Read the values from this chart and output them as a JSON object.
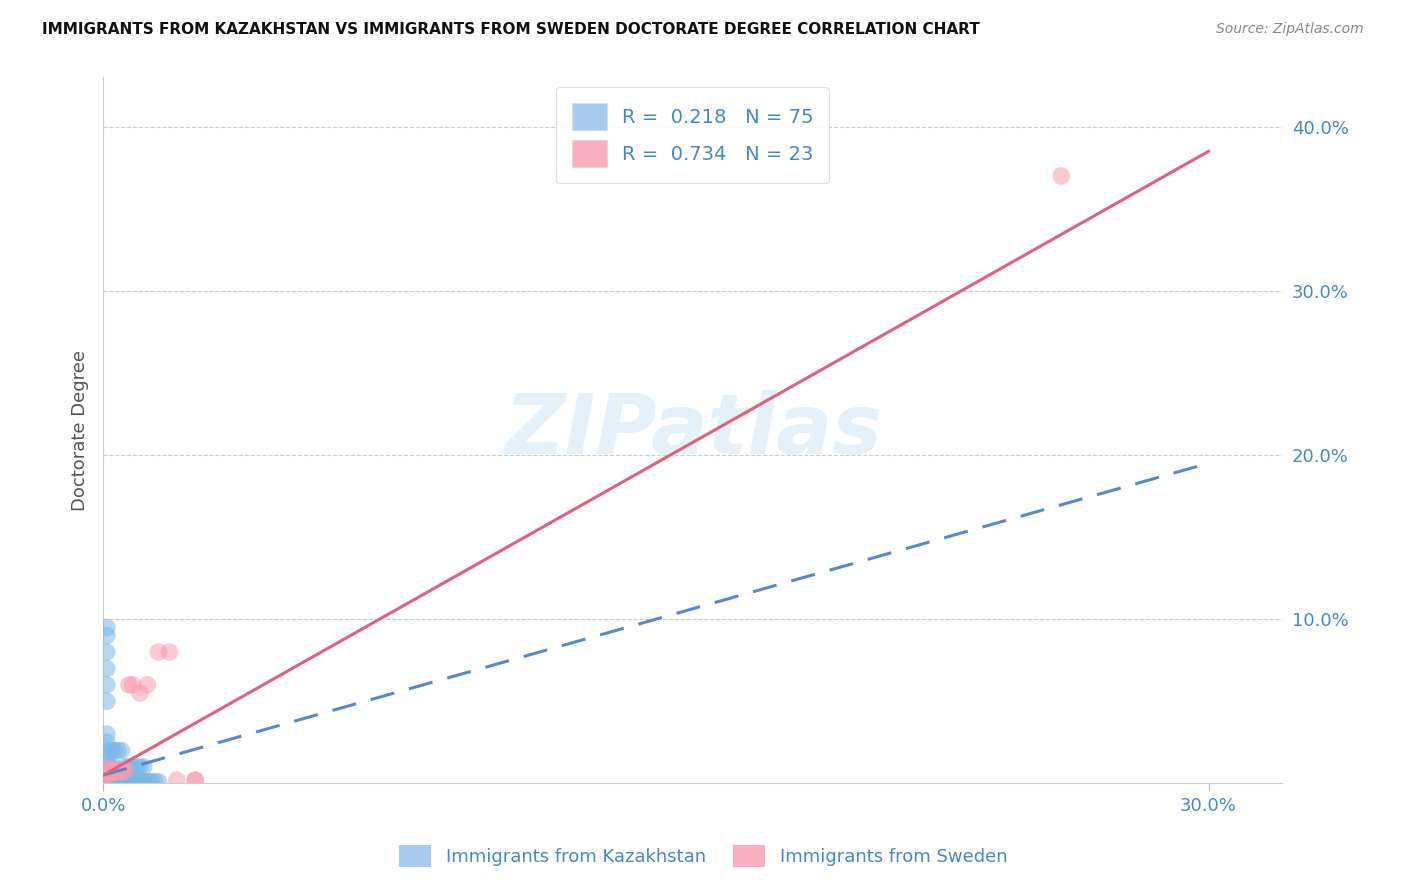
{
  "title": "IMMIGRANTS FROM KAZAKHSTAN VS IMMIGRANTS FROM SWEDEN DOCTORATE DEGREE CORRELATION CHART",
  "source": "Source: ZipAtlas.com",
  "ylabel": "Doctorate Degree",
  "watermark_text": "ZIPatlas",
  "xlim": [
    0.0,
    0.32
  ],
  "ylim": [
    0.0,
    0.43
  ],
  "x_tick_positions": [
    0.0,
    0.3
  ],
  "x_tick_labels": [
    "0.0%",
    "30.0%"
  ],
  "y_tick_positions": [
    0.1,
    0.2,
    0.3,
    0.4
  ],
  "y_tick_labels": [
    "10.0%",
    "20.0%",
    "30.0%",
    "40.0%"
  ],
  "kaz_color": "#7ab8e8",
  "swe_color": "#f99bb0",
  "kaz_line_color": "#5588cc",
  "swe_line_color": "#e06080",
  "kaz_alpha": 0.55,
  "swe_alpha": 0.55,
  "marker_size": 160,
  "legend_kaz_label": "R =  0.218   N = 75",
  "legend_swe_label": "R =  0.734   N = 23",
  "legend_kaz_color": "#a8ccf0",
  "legend_swe_color": "#f8b0c0",
  "bottom_legend_kaz": "Immigrants from Kazakhstan",
  "bottom_legend_swe": "Immigrants from Sweden",
  "kaz_scatter_x": [
    0.0005,
    0.001,
    0.001,
    0.001,
    0.001,
    0.001,
    0.001,
    0.001,
    0.001,
    0.001,
    0.001,
    0.001,
    0.001,
    0.001,
    0.001,
    0.001,
    0.001,
    0.001,
    0.001,
    0.001,
    0.002,
    0.002,
    0.002,
    0.002,
    0.002,
    0.002,
    0.002,
    0.002,
    0.003,
    0.003,
    0.003,
    0.003,
    0.003,
    0.004,
    0.004,
    0.004,
    0.005,
    0.005,
    0.005,
    0.006,
    0.006,
    0.007,
    0.007,
    0.008,
    0.009,
    0.01,
    0.01,
    0.011,
    0.012,
    0.013,
    0.014,
    0.015,
    0.001,
    0.001,
    0.001,
    0.001,
    0.001,
    0.001,
    0.001,
    0.001,
    0.001,
    0.001,
    0.001,
    0.002,
    0.002,
    0.003,
    0.003,
    0.004,
    0.005,
    0.006,
    0.007,
    0.008,
    0.009,
    0.01,
    0.011
  ],
  "kaz_scatter_y": [
    0.002,
    0.001,
    0.001,
    0.001,
    0.001,
    0.002,
    0.002,
    0.003,
    0.003,
    0.003,
    0.004,
    0.004,
    0.005,
    0.005,
    0.006,
    0.006,
    0.007,
    0.007,
    0.008,
    0.001,
    0.001,
    0.001,
    0.002,
    0.003,
    0.004,
    0.005,
    0.006,
    0.007,
    0.001,
    0.002,
    0.003,
    0.004,
    0.005,
    0.001,
    0.002,
    0.003,
    0.001,
    0.002,
    0.003,
    0.002,
    0.003,
    0.002,
    0.003,
    0.001,
    0.001,
    0.001,
    0.002,
    0.001,
    0.001,
    0.001,
    0.001,
    0.001,
    0.05,
    0.06,
    0.07,
    0.08,
    0.09,
    0.095,
    0.01,
    0.015,
    0.02,
    0.025,
    0.03,
    0.01,
    0.02,
    0.01,
    0.02,
    0.02,
    0.02,
    0.01,
    0.01,
    0.01,
    0.01,
    0.01,
    0.01
  ],
  "swe_scatter_x": [
    0.0005,
    0.001,
    0.001,
    0.001,
    0.001,
    0.002,
    0.002,
    0.003,
    0.003,
    0.004,
    0.005,
    0.005,
    0.006,
    0.007,
    0.008,
    0.01,
    0.012,
    0.015,
    0.018,
    0.02,
    0.025,
    0.025,
    0.26
  ],
  "swe_scatter_y": [
    0.005,
    0.005,
    0.007,
    0.008,
    0.009,
    0.006,
    0.008,
    0.007,
    0.008,
    0.008,
    0.007,
    0.008,
    0.008,
    0.06,
    0.06,
    0.055,
    0.06,
    0.08,
    0.08,
    0.002,
    0.002,
    0.002,
    0.37
  ],
  "kaz_line_x0": 0.0,
  "kaz_line_x1": 0.3,
  "kaz_line_y0": 0.005,
  "kaz_line_y1": 0.195,
  "swe_line_x0": 0.0,
  "swe_line_x1": 0.3,
  "swe_line_y0": 0.005,
  "swe_line_y1": 0.385
}
